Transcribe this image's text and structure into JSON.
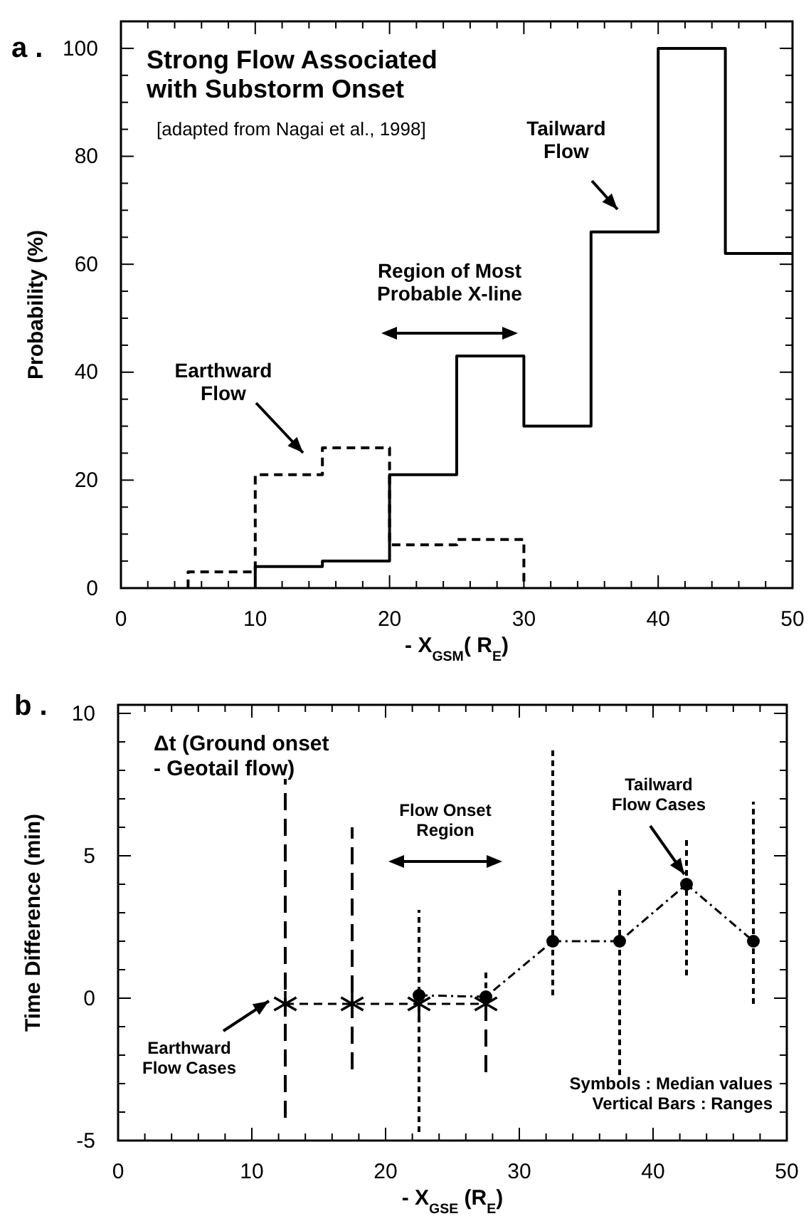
{
  "chart_data": [
    {
      "type": "step",
      "title": "Strong Flow Associated\nwith Substorm Onset",
      "subtitle": "[adapted from Nagai et al., 1998]",
      "xlabel": "- X$_{GSM}$( R$_{E}$)",
      "ylabel": "Probability (%)",
      "xlim": [
        0,
        50
      ],
      "ylim": [
        0,
        105
      ],
      "xticks": [
        0,
        {
          "value": 2,
          "label": null
        },
        {
          "value": 4,
          "label": null
        },
        {
          "value": 6,
          "label": null
        },
        {
          "value": 8,
          "label": null
        },
        10,
        {
          "value": 12,
          "label": null
        },
        {
          "value": 14,
          "label": null
        },
        {
          "value": 16,
          "label": null
        },
        {
          "value": 18,
          "label": null
        },
        20,
        {
          "value": 22,
          "label": null
        },
        {
          "value": 24,
          "label": null
        },
        {
          "value": 26,
          "label": null
        },
        {
          "value": 28,
          "label": null
        },
        30,
        {
          "value": 32,
          "label": null
        },
        {
          "value": 34,
          "label": null
        },
        {
          "value": 36,
          "label": null
        },
        {
          "value": 38,
          "label": null
        },
        40,
        {
          "value": 42,
          "label": null
        },
        {
          "value": 44,
          "label": null
        },
        {
          "value": 46,
          "label": null
        },
        {
          "value": 48,
          "label": null
        },
        50
      ],
      "yticks": [
        0,
        {
          "value": 5,
          "label": null
        },
        {
          "value": 10,
          "label": null
        },
        {
          "value": 15,
          "label": null
        },
        20,
        {
          "value": 25,
          "label": null
        },
        {
          "value": 30,
          "label": null
        },
        {
          "value": 35,
          "label": null
        },
        40,
        {
          "value": 45,
          "label": null
        },
        {
          "value": 50,
          "label": null
        },
        {
          "value": 55,
          "label": null
        },
        60,
        {
          "value": 65,
          "label": null
        },
        {
          "value": 70,
          "label": null
        },
        {
          "value": 75,
          "label": null
        },
        80,
        {
          "value": 85,
          "label": null
        },
        {
          "value": 90,
          "label": null
        },
        {
          "value": 95,
          "label": null
        },
        100
      ],
      "grid": false,
      "series": [
        {
          "color": "#000000",
          "line_style": "solid",
          "x": [
            10,
            10,
            15,
            20,
            25,
            30,
            35,
            40,
            45,
            50
          ],
          "values": [
            0,
            4,
            5,
            21,
            43,
            30,
            66,
            100,
            62,
            62
          ]
        },
        {
          "color": "#000000",
          "line_style": "dashed",
          "x": [
            5,
            5,
            10,
            15,
            20,
            25,
            30
          ],
          "values": [
            0,
            3,
            21,
            26,
            8,
            9,
            0
          ]
        }
      ],
      "annotations": [
        "a .",
        "Tailward\nFlow",
        "Earthward\nFlow",
        "Region of Most\nProbable  X-line"
      ]
    },
    {
      "type": "line",
      "title": "Δt (Ground onset\n- Geotail flow)",
      "xlabel": "- X$_{GSE}$ (R$_{E}$)",
      "ylabel": "Time Difference (min)",
      "xlim": [
        0,
        50
      ],
      "ylim": [
        -5,
        10.3
      ],
      "xticks": [
        0,
        {
          "value": 2,
          "label": null
        },
        {
          "value": 4,
          "label": null
        },
        {
          "value": 6,
          "label": null
        },
        {
          "value": 8,
          "label": null
        },
        10,
        {
          "value": 12,
          "label": null
        },
        {
          "value": 14,
          "label": null
        },
        {
          "value": 16,
          "label": null
        },
        {
          "value": 18,
          "label": null
        },
        20,
        {
          "value": 22,
          "label": null
        },
        {
          "value": 24,
          "label": null
        },
        {
          "value": 26,
          "label": null
        },
        {
          "value": 28,
          "label": null
        },
        30,
        {
          "value": 32,
          "label": null
        },
        {
          "value": 34,
          "label": null
        },
        {
          "value": 36,
          "label": null
        },
        {
          "value": 38,
          "label": null
        },
        40,
        {
          "value": 42,
          "label": null
        },
        {
          "value": 44,
          "label": null
        },
        {
          "value": 46,
          "label": null
        },
        {
          "value": 48,
          "label": null
        },
        50
      ],
      "yticks": [
        -5,
        {
          "value": -4,
          "label": null
        },
        {
          "value": -3,
          "label": null
        },
        {
          "value": -2,
          "label": null
        },
        {
          "value": -1,
          "label": null
        },
        0,
        {
          "value": 1,
          "label": null
        },
        {
          "value": 2,
          "label": null
        },
        {
          "value": 3,
          "label": null
        },
        {
          "value": 4,
          "label": null
        },
        5,
        {
          "value": 6,
          "label": null
        },
        {
          "value": 7,
          "label": null
        },
        {
          "value": 8,
          "label": null
        },
        {
          "value": 9,
          "label": null
        },
        10
      ],
      "grid": false,
      "series": [
        {
          "color": "#000000",
          "marker": "cross",
          "line_style": "dashed",
          "x": [
            12.5,
            17.5,
            22.5,
            27.5
          ],
          "values": [
            -0.2,
            -0.2,
            -0.2,
            -0.2
          ],
          "errors": [
            [
              -4.2,
              7.7
            ],
            [
              -2.5,
              6
            ],
            null,
            [
              -2.6,
              -0.2
            ]
          ]
        },
        {
          "color": "#000000",
          "marker": "circle",
          "line_style": "dotted",
          "x": [
            22.5,
            27.5,
            32.5,
            37.5,
            42.5,
            47.5
          ],
          "values": [
            0.1,
            0.05,
            2,
            2,
            4,
            2
          ],
          "errors": [
            [
              -4.7,
              3.1
            ],
            [
              0,
              0.9
            ],
            [
              0.1,
              8.7
            ],
            [
              -2.7,
              3.9
            ],
            [
              0.8,
              5.6
            ],
            [
              -0.2,
              6.9
            ]
          ]
        }
      ],
      "annotations": [
        "b .",
        "Flow  Onset\nRegion",
        "Tailward\nFlow  Cases",
        "Earthward\nFlow  Cases",
        "Symbols : Median values\nVertical Bars : Ranges"
      ]
    }
  ]
}
